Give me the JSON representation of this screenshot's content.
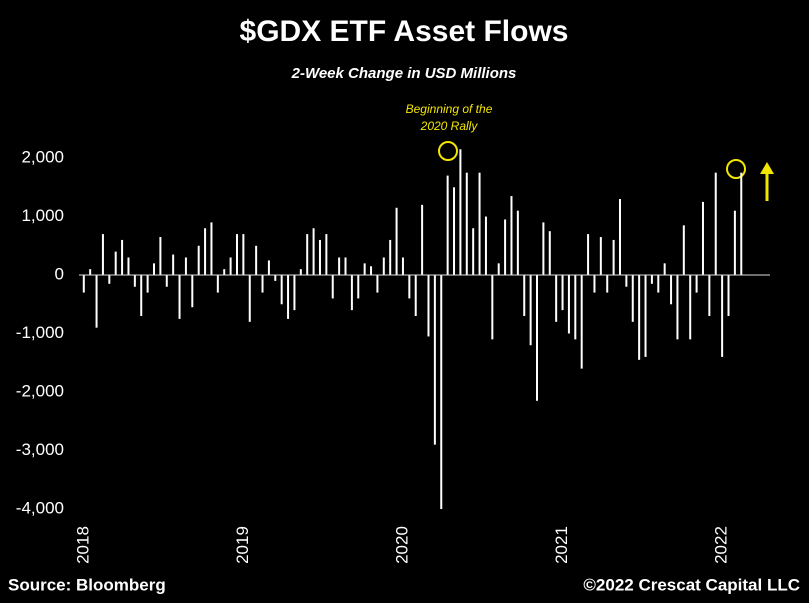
{
  "chart_data": {
    "type": "bar",
    "title": "$GDX ETF Asset Flows",
    "subtitle": "2-Week Change in USD Millions",
    "annotation": [
      "Beginning of the",
      "2020 Rally"
    ],
    "source": "Source: Bloomberg",
    "credit": "©2022 Crescat Capital LLC",
    "color": "#ffffff",
    "x": [
      2018.0,
      2018.04,
      2018.08,
      2018.12,
      2018.16,
      2018.2,
      2018.24,
      2018.28,
      2018.32,
      2018.36,
      2018.4,
      2018.44,
      2018.48,
      2018.52,
      2018.56,
      2018.6,
      2018.64,
      2018.68,
      2018.72,
      2018.76,
      2018.8,
      2018.84,
      2018.88,
      2018.92,
      2018.96,
      2019.0,
      2019.04,
      2019.08,
      2019.12,
      2019.16,
      2019.2,
      2019.24,
      2019.28,
      2019.32,
      2019.36,
      2019.4,
      2019.44,
      2019.48,
      2019.52,
      2019.56,
      2019.6,
      2019.64,
      2019.68,
      2019.72,
      2019.76,
      2019.8,
      2019.84,
      2019.88,
      2019.92,
      2019.96,
      2020.0,
      2020.04,
      2020.08,
      2020.12,
      2020.16,
      2020.2,
      2020.24,
      2020.28,
      2020.32,
      2020.36,
      2020.4,
      2020.44,
      2020.48,
      2020.52,
      2020.56,
      2020.6,
      2020.64,
      2020.68,
      2020.72,
      2020.76,
      2020.8,
      2020.84,
      2020.88,
      2020.92,
      2020.96,
      2021.0,
      2021.04,
      2021.08,
      2021.12,
      2021.16,
      2021.2,
      2021.24,
      2021.28,
      2021.32,
      2021.36,
      2021.4,
      2021.44,
      2021.48,
      2021.52,
      2021.56,
      2021.6,
      2021.64,
      2021.68,
      2021.72,
      2021.76,
      2021.8,
      2021.84,
      2021.88,
      2021.92,
      2021.96,
      2022.0,
      2022.04,
      2022.08,
      2022.12
    ],
    "values": [
      -300,
      100,
      -900,
      700,
      -150,
      400,
      600,
      300,
      -200,
      -700,
      -300,
      200,
      650,
      -200,
      350,
      -750,
      300,
      -550,
      500,
      800,
      900,
      -300,
      100,
      300,
      700,
      700,
      -800,
      500,
      -300,
      250,
      -100,
      -500,
      -750,
      -600,
      100,
      700,
      800,
      600,
      700,
      -400,
      300,
      300,
      -600,
      -400,
      200,
      150,
      -300,
      300,
      600,
      1150,
      300,
      -400,
      -700,
      1200,
      -1050,
      -2900,
      -4000,
      1700,
      1500,
      2150,
      1750,
      800,
      1750,
      1000,
      -1100,
      200,
      950,
      1350,
      1100,
      -700,
      -1200,
      -2150,
      900,
      750,
      -800,
      -600,
      -1000,
      -1100,
      -1600,
      700,
      -300,
      650,
      -300,
      600,
      1300,
      -200,
      -800,
      -1450,
      -1400,
      -150,
      -300,
      200,
      -500,
      -1100,
      850,
      -1100,
      -300,
      1250,
      -700,
      1750,
      -1400,
      -700,
      1100,
      1750
    ],
    "xlim": [
      2017.97,
      2022.3
    ],
    "xticks": [
      2018,
      2019,
      2020,
      2021,
      2022
    ],
    "ylim": [
      -4000,
      2300
    ],
    "yticks": [
      {
        "value": 2000,
        "label": "2,000"
      },
      {
        "value": 1000,
        "label": "1,000"
      },
      0,
      {
        "value": -1000,
        "label": "-1,000"
      },
      {
        "value": -2000,
        "label": "-2,000"
      },
      {
        "value": -3000,
        "label": "-3,000"
      },
      {
        "value": -4000,
        "label": "-4,000"
      }
    ]
  }
}
